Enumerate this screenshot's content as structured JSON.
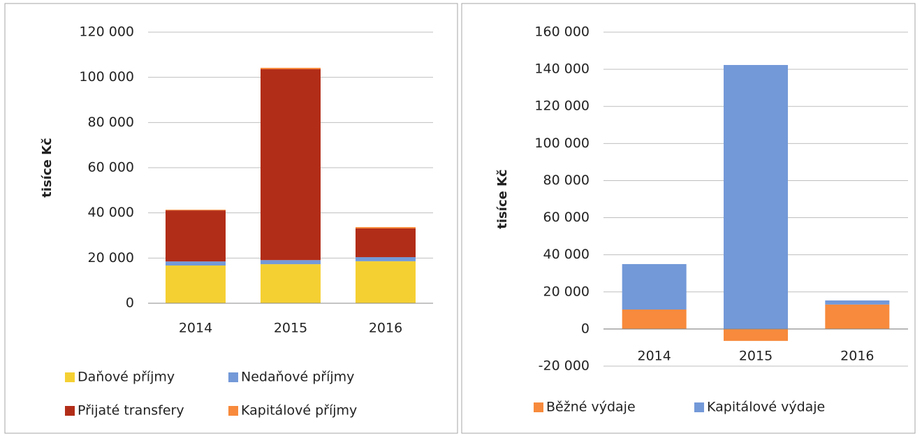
{
  "chart_data": [
    {
      "type": "bar",
      "stacked": true,
      "ylabel": "tisíce Kč",
      "categories": [
        "2014",
        "2015",
        "2016"
      ],
      "series": [
        {
          "name": "Daňové příjmy",
          "color": "#f5d033",
          "values": [
            16700,
            17300,
            18600
          ]
        },
        {
          "name": "Nedaňové příjmy",
          "color": "#7399d8",
          "values": [
            1800,
            1800,
            1800
          ]
        },
        {
          "name": "Přijaté transfery",
          "color": "#b22d18",
          "values": [
            22600,
            84500,
            12700
          ]
        },
        {
          "name": "Kapitálové příjmy",
          "color": "#f78a3c",
          "values": [
            300,
            600,
            600
          ]
        }
      ],
      "ylim": [
        0,
        120000
      ],
      "yticks": [
        0,
        {
          "value": 20000,
          "label": "20 000"
        },
        {
          "value": 40000,
          "label": "40 000"
        },
        {
          "value": 60000,
          "label": "60 000"
        },
        {
          "value": 80000,
          "label": "80 000"
        },
        {
          "value": 100000,
          "label": "100 000"
        },
        {
          "value": 120000,
          "label": "120 000"
        }
      ],
      "grid": true
    },
    {
      "type": "bar",
      "stacked": true,
      "ylabel": "tisíce Kč",
      "categories": [
        "2014",
        "2015",
        "2016"
      ],
      "series": [
        {
          "name": "Běžné výdaje",
          "color": "#f78a3c",
          "values": [
            10500,
            -6400,
            13200
          ]
        },
        {
          "name": "Kapitálové výdaje",
          "color": "#7399d8",
          "values": [
            24500,
            142300,
            2200
          ]
        }
      ],
      "ylim": [
        -20000,
        160000
      ],
      "yticks": [
        {
          "value": -20000,
          "label": "-20 000"
        },
        0,
        {
          "value": 20000,
          "label": "20 000"
        },
        {
          "value": 40000,
          "label": "40 000"
        },
        {
          "value": 60000,
          "label": "60 000"
        },
        {
          "value": 80000,
          "label": "80 000"
        },
        {
          "value": 100000,
          "label": "100 000"
        },
        {
          "value": 120000,
          "label": "120 000"
        },
        {
          "value": 140000,
          "label": "140 000"
        },
        {
          "value": 160000,
          "label": "160 000"
        }
      ],
      "grid": true
    }
  ]
}
